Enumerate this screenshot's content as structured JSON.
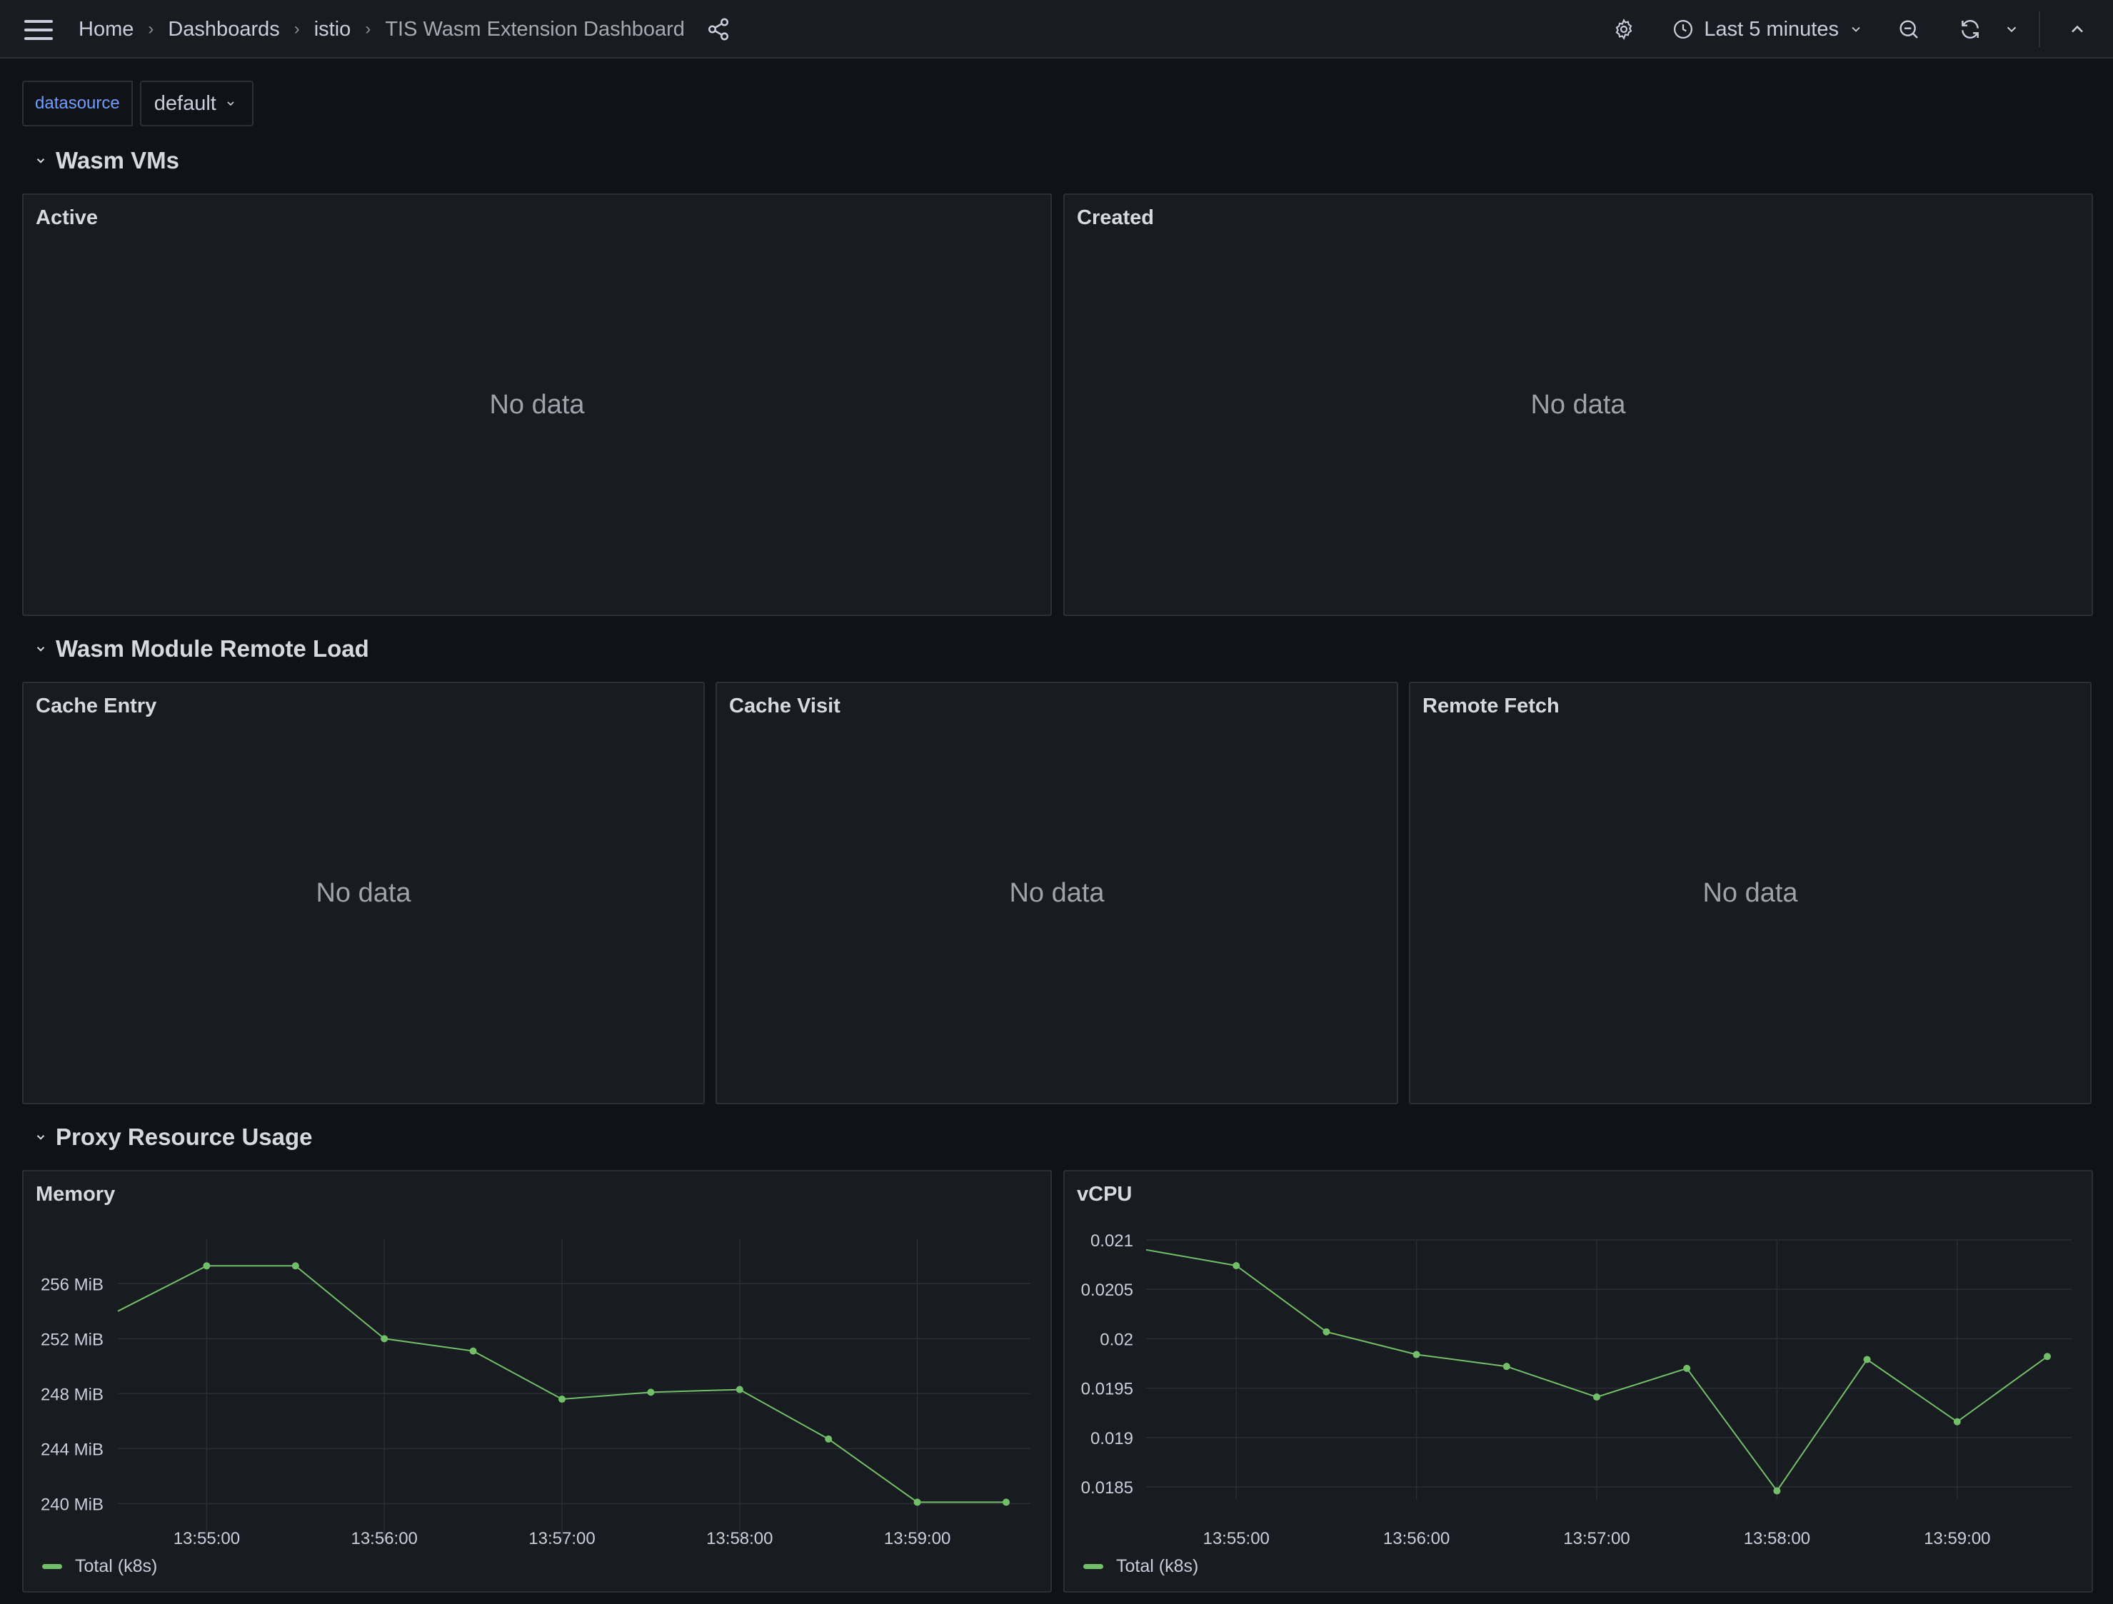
{
  "breadcrumb": [
    "Home",
    "Dashboards",
    "istio",
    "TIS Wasm Extension Dashboard"
  ],
  "toolbar": {
    "time_range": "Last 5 minutes"
  },
  "variables": {
    "label": "datasource",
    "value": "default"
  },
  "rows": [
    {
      "title": "Wasm VMs"
    },
    {
      "title": "Wasm Module Remote Load"
    },
    {
      "title": "Proxy Resource Usage"
    }
  ],
  "panels": {
    "active": {
      "title": "Active",
      "empty": "No data"
    },
    "created": {
      "title": "Created",
      "empty": "No data"
    },
    "cache_entry": {
      "title": "Cache Entry",
      "empty": "No data"
    },
    "cache_visit": {
      "title": "Cache Visit",
      "empty": "No data"
    },
    "remote_fetch": {
      "title": "Remote Fetch",
      "empty": "No data"
    },
    "memory": {
      "title": "Memory",
      "legend": "Total (k8s)"
    },
    "vcpu": {
      "title": "vCPU",
      "legend": "Total (k8s)"
    }
  },
  "colors": {
    "series": "#73bf69",
    "accent": "#6e9fff"
  },
  "chart_data": [
    {
      "type": "line",
      "title": "Memory",
      "x": [
        "13:54:30",
        "13:55:00",
        "13:55:30",
        "13:56:00",
        "13:56:30",
        "13:57:00",
        "13:57:30",
        "13:58:00",
        "13:58:30",
        "13:59:00",
        "13:59:30"
      ],
      "xticks": [
        "13:55:00",
        "13:56:00",
        "13:57:00",
        "13:58:00",
        "13:59:00"
      ],
      "yticks": [
        240,
        244,
        248,
        252,
        256
      ],
      "ytick_labels": [
        "240 MiB",
        "244 MiB",
        "248 MiB",
        "252 MiB",
        "256 MiB"
      ],
      "ylim": [
        238.2,
        259.6
      ],
      "series": [
        {
          "name": "Total (k8s)",
          "values": [
            254.0,
            257.3,
            257.3,
            252.0,
            251.1,
            247.6,
            248.1,
            248.3,
            244.7,
            240.1,
            240.1
          ]
        }
      ],
      "grid": true,
      "legend": "bottom-left"
    },
    {
      "type": "line",
      "title": "vCPU",
      "x": [
        "13:54:30",
        "13:55:00",
        "13:55:30",
        "13:56:00",
        "13:56:30",
        "13:57:00",
        "13:57:30",
        "13:58:00",
        "13:58:30",
        "13:59:00",
        "13:59:30"
      ],
      "xticks": [
        "13:55:00",
        "13:56:00",
        "13:57:00",
        "13:58:00",
        "13:59:00"
      ],
      "yticks": [
        0.0185,
        0.019,
        0.0195,
        0.02,
        0.0205,
        0.021
      ],
      "ytick_labels": [
        "0.0185",
        "0.019",
        "0.0195",
        "0.02",
        "0.0205",
        "0.021"
      ],
      "ylim": [
        0.0185,
        0.021
      ],
      "series": [
        {
          "name": "Total (k8s)",
          "values": [
            0.0209,
            0.02074,
            0.02007,
            0.01984,
            0.01972,
            0.01941,
            0.0197,
            0.01846,
            0.01979,
            0.01916,
            0.01982
          ]
        }
      ],
      "grid": true,
      "legend": "bottom-left"
    }
  ]
}
